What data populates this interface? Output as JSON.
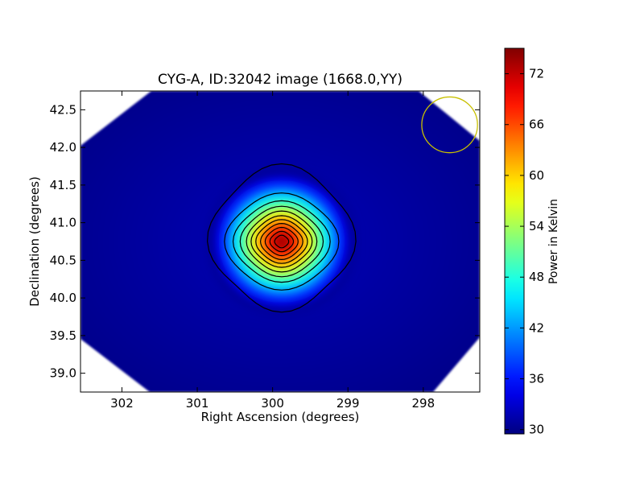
{
  "chart_data": {
    "type": "heatmap",
    "title": "CYG-A, ID:32042 image (1668.0,YY)",
    "xlabel": "Right Ascension (degrees)",
    "ylabel": "Declination (degrees)",
    "xlim": [
      302.55,
      297.25
    ],
    "ylim": [
      38.75,
      42.75
    ],
    "xticks": [
      302,
      301,
      300,
      299,
      298
    ],
    "xtick_labels": [
      "302",
      "301",
      "300",
      "299",
      "298"
    ],
    "yticks": [
      39.0,
      39.5,
      40.0,
      40.5,
      41.0,
      41.5,
      42.0,
      42.5
    ],
    "ytick_labels": [
      "39.0",
      "39.5",
      "40.0",
      "40.5",
      "41.0",
      "41.5",
      "42.0",
      "42.5"
    ],
    "source_peak": {
      "ra": 299.88,
      "dec": 40.75,
      "value": 75
    },
    "background_value": 30,
    "contours": [
      {
        "level": 1,
        "ra_radius": 0.93,
        "dec_radius": 0.93
      },
      {
        "level": 2,
        "ra_radius": 0.73,
        "dec_radius": 0.62
      },
      {
        "level": 3,
        "ra_radius": 0.62,
        "dec_radius": 0.52
      },
      {
        "level": 4,
        "ra_radius": 0.53,
        "dec_radius": 0.45
      },
      {
        "level": 5,
        "ra_radius": 0.45,
        "dec_radius": 0.39
      },
      {
        "level": 6,
        "ra_radius": 0.39,
        "dec_radius": 0.33
      },
      {
        "level": 7,
        "ra_radius": 0.33,
        "dec_radius": 0.28
      },
      {
        "level": 8,
        "ra_radius": 0.27,
        "dec_radius": 0.23
      },
      {
        "level": 9,
        "ra_radius": 0.21,
        "dec_radius": 0.18
      },
      {
        "level": 10,
        "ra_radius": 0.15,
        "dec_radius": 0.13
      },
      {
        "level": 11,
        "ra_radius": 0.09,
        "dec_radius": 0.08
      }
    ],
    "beam_circle": {
      "ra": 297.65,
      "dec": 42.3,
      "radius_ra": 0.37,
      "color": "#c8c000"
    },
    "colorbar": {
      "label": "Power in Kelvin",
      "vmin": 29.5,
      "vmax": 75,
      "ticks": [
        30,
        36,
        42,
        48,
        54,
        60,
        66,
        72
      ],
      "tick_labels": [
        "30",
        "36",
        "42",
        "48",
        "54",
        "60",
        "66",
        "72"
      ],
      "colormap": "jet"
    },
    "grid": false,
    "legend": "none"
  }
}
